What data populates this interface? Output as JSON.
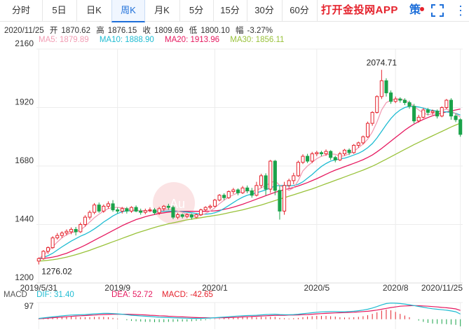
{
  "tabs": [
    {
      "label": "分时"
    },
    {
      "label": "5日"
    },
    {
      "label": "日K"
    },
    {
      "label": "周K",
      "active": true
    },
    {
      "label": "月K"
    },
    {
      "label": "5分"
    },
    {
      "label": "15分"
    },
    {
      "label": "30分"
    },
    {
      "label": "60分"
    }
  ],
  "promo": "打开金投网APP",
  "strategy_label": "策",
  "info": {
    "date": "2020/11/25",
    "open_label": "开",
    "open": "1870.62",
    "high_label": "高",
    "high": "1876.15",
    "close_label": "收",
    "close": "1809.69",
    "low_label": "低",
    "low": "1800.10",
    "change_label": "幅",
    "change": "-3.27%"
  },
  "ma": {
    "ma5": "MA5: 1879.89",
    "ma10": "MA10: 1888.90",
    "ma20": "MA20: 1913.96",
    "ma30": "MA30: 1856.11"
  },
  "macd": {
    "name": "MACD",
    "dif": "DIF: 31.40",
    "dea": "DEA: 52.72",
    "macd": "MACD: -42.65",
    "top_value": "97"
  },
  "colors": {
    "up": "#e5232d",
    "down": "#1aa34a",
    "ma5": "#f29db4",
    "ma10": "#1fbcd2",
    "ma20": "#e6195f",
    "ma30": "#99c23a",
    "accent": "#1e6fd9"
  },
  "chart_data": {
    "type": "candlestick",
    "yticks": [
      1200,
      1440,
      1680,
      1920,
      2160
    ],
    "ytick_labels": [
      "1200",
      "1440",
      "1680",
      "1920",
      "2160"
    ],
    "xticks": [
      "2019/5/31",
      "2019/9",
      "2020/1",
      "2020/5",
      "2020/8",
      "2020/11/25"
    ],
    "max_label": "2074.71",
    "min_label": "1276.02",
    "max": 2074.71,
    "min": 1276.02,
    "candles": [
      [
        1290,
        1300,
        1276,
        1305
      ],
      [
        1300,
        1330,
        1295,
        1335
      ],
      [
        1330,
        1345,
        1320,
        1350
      ],
      [
        1345,
        1385,
        1340,
        1392
      ],
      [
        1385,
        1395,
        1378,
        1405
      ],
      [
        1395,
        1405,
        1385,
        1412
      ],
      [
        1405,
        1412,
        1395,
        1420
      ],
      [
        1410,
        1420,
        1400,
        1428
      ],
      [
        1420,
        1410,
        1395,
        1430
      ],
      [
        1410,
        1440,
        1405,
        1448
      ],
      [
        1440,
        1470,
        1432,
        1478
      ],
      [
        1470,
        1490,
        1460,
        1498
      ],
      [
        1490,
        1520,
        1482,
        1528
      ],
      [
        1520,
        1495,
        1488,
        1530
      ],
      [
        1495,
        1515,
        1488,
        1522
      ],
      [
        1515,
        1525,
        1505,
        1535
      ],
      [
        1525,
        1500,
        1492,
        1540
      ],
      [
        1500,
        1495,
        1485,
        1510
      ],
      [
        1495,
        1505,
        1485,
        1512
      ],
      [
        1505,
        1495,
        1485,
        1512
      ],
      [
        1495,
        1510,
        1488,
        1515
      ],
      [
        1510,
        1495,
        1490,
        1518
      ],
      [
        1495,
        1490,
        1480,
        1505
      ],
      [
        1490,
        1497,
        1482,
        1505
      ],
      [
        1497,
        1500,
        1490,
        1510
      ],
      [
        1500,
        1488,
        1480,
        1508
      ],
      [
        1488,
        1505,
        1480,
        1512
      ],
      [
        1505,
        1515,
        1495,
        1520
      ],
      [
        1515,
        1510,
        1500,
        1525
      ],
      [
        1510,
        1470,
        1462,
        1518
      ],
      [
        1470,
        1480,
        1462,
        1488
      ],
      [
        1480,
        1473,
        1465,
        1485
      ],
      [
        1473,
        1480,
        1466,
        1486
      ],
      [
        1480,
        1470,
        1460,
        1484
      ],
      [
        1470,
        1480,
        1465,
        1485
      ],
      [
        1480,
        1500,
        1475,
        1505
      ],
      [
        1500,
        1510,
        1492,
        1515
      ],
      [
        1510,
        1515,
        1502,
        1522
      ],
      [
        1515,
        1540,
        1510,
        1545
      ],
      [
        1540,
        1560,
        1535,
        1565
      ],
      [
        1560,
        1550,
        1540,
        1568
      ],
      [
        1550,
        1575,
        1545,
        1580
      ],
      [
        1575,
        1582,
        1565,
        1590
      ],
      [
        1582,
        1570,
        1560,
        1588
      ],
      [
        1570,
        1590,
        1565,
        1598
      ],
      [
        1590,
        1578,
        1568,
        1600
      ],
      [
        1578,
        1560,
        1550,
        1590
      ],
      [
        1560,
        1600,
        1555,
        1615
      ],
      [
        1600,
        1640,
        1590,
        1648
      ],
      [
        1640,
        1585,
        1560,
        1650
      ],
      [
        1585,
        1700,
        1570,
        1705
      ],
      [
        1700,
        1580,
        1560,
        1705
      ],
      [
        1580,
        1495,
        1460,
        1600
      ],
      [
        1495,
        1600,
        1480,
        1615
      ],
      [
        1600,
        1620,
        1590,
        1628
      ],
      [
        1620,
        1640,
        1605,
        1652
      ],
      [
        1640,
        1695,
        1635,
        1702
      ],
      [
        1695,
        1720,
        1688,
        1728
      ],
      [
        1720,
        1700,
        1692,
        1730
      ],
      [
        1700,
        1730,
        1692,
        1738
      ],
      [
        1730,
        1735,
        1720,
        1742
      ],
      [
        1735,
        1730,
        1720,
        1742
      ],
      [
        1730,
        1740,
        1722,
        1748
      ],
      [
        1740,
        1715,
        1705,
        1745
      ],
      [
        1715,
        1705,
        1695,
        1722
      ],
      [
        1705,
        1730,
        1700,
        1738
      ],
      [
        1730,
        1745,
        1722,
        1750
      ],
      [
        1745,
        1735,
        1725,
        1752
      ],
      [
        1735,
        1765,
        1730,
        1770
      ],
      [
        1765,
        1775,
        1755,
        1780
      ],
      [
        1775,
        1800,
        1768,
        1805
      ],
      [
        1800,
        1855,
        1795,
        1862
      ],
      [
        1855,
        1900,
        1845,
        1905
      ],
      [
        1900,
        1965,
        1895,
        1970
      ],
      [
        1965,
        2030,
        1955,
        2074.71
      ],
      [
        2030,
        1980,
        1965,
        2040
      ],
      [
        1980,
        1945,
        1935,
        1990
      ],
      [
        1945,
        1955,
        1938,
        1965
      ],
      [
        1955,
        1950,
        1940,
        1962
      ],
      [
        1950,
        1940,
        1930,
        1958
      ],
      [
        1940,
        1925,
        1915,
        1948
      ],
      [
        1925,
        1865,
        1855,
        1935
      ],
      [
        1865,
        1880,
        1858,
        1890
      ],
      [
        1880,
        1910,
        1875,
        1918
      ],
      [
        1910,
        1900,
        1888,
        1918
      ],
      [
        1900,
        1905,
        1890,
        1912
      ],
      [
        1905,
        1885,
        1875,
        1912
      ],
      [
        1885,
        1920,
        1880,
        1925
      ],
      [
        1920,
        1950,
        1912,
        1955
      ],
      [
        1950,
        1885,
        1870,
        1958
      ],
      [
        1885,
        1870,
        1860,
        1895
      ],
      [
        1870,
        1809.69,
        1800.1,
        1876.15
      ]
    ],
    "ma5": [
      1300,
      1315,
      1330,
      1348,
      1368,
      1385,
      1398,
      1406,
      1410,
      1418,
      1432,
      1450,
      1468,
      1482,
      1495,
      1505,
      1510,
      1510,
      1508,
      1505,
      1500,
      1498,
      1497,
      1496,
      1495,
      1495,
      1497,
      1500,
      1503,
      1500,
      1495,
      1490,
      1483,
      1480,
      1477,
      1478,
      1485,
      1495,
      1508,
      1525,
      1540,
      1552,
      1562,
      1570,
      1575,
      1578,
      1578,
      1580,
      1590,
      1600,
      1610,
      1620,
      1600,
      1590,
      1580,
      1590,
      1620,
      1660,
      1680,
      1695,
      1710,
      1720,
      1725,
      1730,
      1728,
      1720,
      1722,
      1730,
      1740,
      1755,
      1770,
      1790,
      1820,
      1860,
      1910,
      1940,
      1950,
      1955,
      1955,
      1950,
      1940,
      1925,
      1910,
      1898,
      1890,
      1895,
      1900,
      1905,
      1915,
      1905,
      1895,
      1880
    ],
    "ma10": [
      1300,
      1305,
      1312,
      1322,
      1335,
      1348,
      1360,
      1372,
      1382,
      1392,
      1400,
      1410,
      1422,
      1435,
      1450,
      1462,
      1475,
      1485,
      1492,
      1496,
      1497,
      1497,
      1497,
      1496,
      1495,
      1494,
      1493,
      1494,
      1495,
      1495,
      1494,
      1493,
      1491,
      1488,
      1485,
      1482,
      1482,
      1484,
      1488,
      1495,
      1506,
      1518,
      1530,
      1542,
      1552,
      1560,
      1565,
      1570,
      1576,
      1582,
      1590,
      1598,
      1600,
      1600,
      1598,
      1600,
      1605,
      1615,
      1630,
      1645,
      1662,
      1678,
      1690,
      1700,
      1705,
      1710,
      1712,
      1718,
      1725,
      1732,
      1742,
      1755,
      1772,
      1795,
      1822,
      1850,
      1875,
      1895,
      1910,
      1920,
      1925,
      1925,
      1922,
      1918,
      1912,
      1908,
      1905,
      1903,
      1902,
      1900,
      1896,
      1889
    ],
    "ma20": [
      1300,
      1301,
      1303,
      1306,
      1310,
      1316,
      1322,
      1330,
      1338,
      1346,
      1355,
      1365,
      1375,
      1385,
      1395,
      1405,
      1415,
      1425,
      1435,
      1444,
      1452,
      1460,
      1466,
      1472,
      1477,
      1481,
      1485,
      1488,
      1491,
      1493,
      1494,
      1494,
      1494,
      1494,
      1494,
      1494,
      1494,
      1495,
      1496,
      1498,
      1502,
      1506,
      1511,
      1517,
      1523,
      1530,
      1537,
      1544,
      1551,
      1558,
      1565,
      1572,
      1578,
      1583,
      1587,
      1592,
      1598,
      1605,
      1612,
      1620,
      1628,
      1637,
      1646,
      1655,
      1663,
      1670,
      1677,
      1684,
      1691,
      1698,
      1706,
      1715,
      1725,
      1738,
      1752,
      1767,
      1782,
      1797,
      1812,
      1827,
      1840,
      1852,
      1862,
      1871,
      1879,
      1886,
      1892,
      1897,
      1902,
      1906,
      1910,
      1914
    ],
    "ma30": [
      1290,
      1291,
      1293,
      1295,
      1298,
      1302,
      1306,
      1311,
      1316,
      1322,
      1328,
      1334,
      1341,
      1348,
      1355,
      1362,
      1369,
      1376,
      1383,
      1390,
      1397,
      1404,
      1410,
      1416,
      1422,
      1428,
      1433,
      1438,
      1443,
      1447,
      1451,
      1455,
      1459,
      1462,
      1465,
      1468,
      1471,
      1474,
      1477,
      1480,
      1484,
      1488,
      1492,
      1496,
      1500,
      1505,
      1510,
      1515,
      1520,
      1526,
      1532,
      1538,
      1544,
      1550,
      1556,
      1562,
      1568,
      1574,
      1580,
      1586,
      1593,
      1600,
      1607,
      1614,
      1621,
      1628,
      1635,
      1642,
      1649,
      1656,
      1663,
      1671,
      1679,
      1688,
      1698,
      1708,
      1718,
      1728,
      1738,
      1748,
      1758,
      1768,
      1777,
      1786,
      1795,
      1804,
      1813,
      1822,
      1831,
      1840,
      1848,
      1856
    ],
    "macd_dif": [
      5,
      8,
      11,
      14,
      17,
      20,
      23,
      25,
      26,
      27,
      28,
      30,
      32,
      34,
      35,
      35,
      34,
      32,
      30,
      27,
      24,
      22,
      20,
      18,
      16,
      14,
      12,
      11,
      10,
      9,
      8,
      7,
      6,
      5,
      5,
      5,
      6,
      7,
      9,
      11,
      13,
      15,
      17,
      19,
      21,
      22,
      23,
      24,
      26,
      28,
      29,
      30,
      28,
      27,
      27,
      28,
      30,
      33,
      36,
      39,
      42,
      44,
      45,
      46,
      46,
      45,
      45,
      46,
      48,
      51,
      55,
      60,
      67,
      76,
      86,
      94,
      97,
      96,
      94,
      91,
      87,
      82,
      77,
      72,
      67,
      63,
      60,
      57,
      54,
      50,
      45,
      31
    ],
    "macd_dea": [
      3,
      5,
      7,
      9,
      11,
      13,
      15,
      17,
      19,
      21,
      22,
      24,
      25,
      27,
      28,
      29,
      30,
      30,
      30,
      30,
      29,
      28,
      27,
      26,
      24,
      23,
      21,
      20,
      18,
      17,
      15,
      14,
      13,
      11,
      10,
      9,
      9,
      8,
      8,
      9,
      9,
      10,
      11,
      12,
      14,
      15,
      16,
      18,
      19,
      21,
      22,
      23,
      24,
      24,
      25,
      25,
      26,
      27,
      28,
      30,
      32,
      34,
      35,
      37,
      38,
      39,
      40,
      41,
      42,
      44,
      46,
      48,
      51,
      55,
      60,
      65,
      70,
      74,
      78,
      80,
      81,
      82,
      81,
      80,
      78,
      76,
      74,
      71,
      69,
      66,
      62,
      53
    ],
    "macd_hist": [
      4,
      6,
      8,
      10,
      12,
      14,
      16,
      16,
      14,
      12,
      12,
      12,
      14,
      14,
      14,
      12,
      8,
      4,
      0,
      -6,
      -10,
      -12,
      -14,
      -16,
      -16,
      -18,
      -18,
      -18,
      -16,
      -16,
      -14,
      -14,
      -14,
      -12,
      -10,
      -8,
      -6,
      -2,
      2,
      4,
      8,
      10,
      12,
      14,
      14,
      14,
      14,
      12,
      14,
      14,
      14,
      14,
      8,
      6,
      4,
      6,
      8,
      12,
      16,
      18,
      20,
      20,
      20,
      18,
      16,
      12,
      10,
      10,
      12,
      14,
      18,
      24,
      32,
      42,
      52,
      58,
      54,
      44,
      32,
      22,
      12,
      0,
      -8,
      -16,
      -22,
      -26,
      -28,
      -28,
      -30,
      -32,
      -34,
      -42.65
    ]
  }
}
